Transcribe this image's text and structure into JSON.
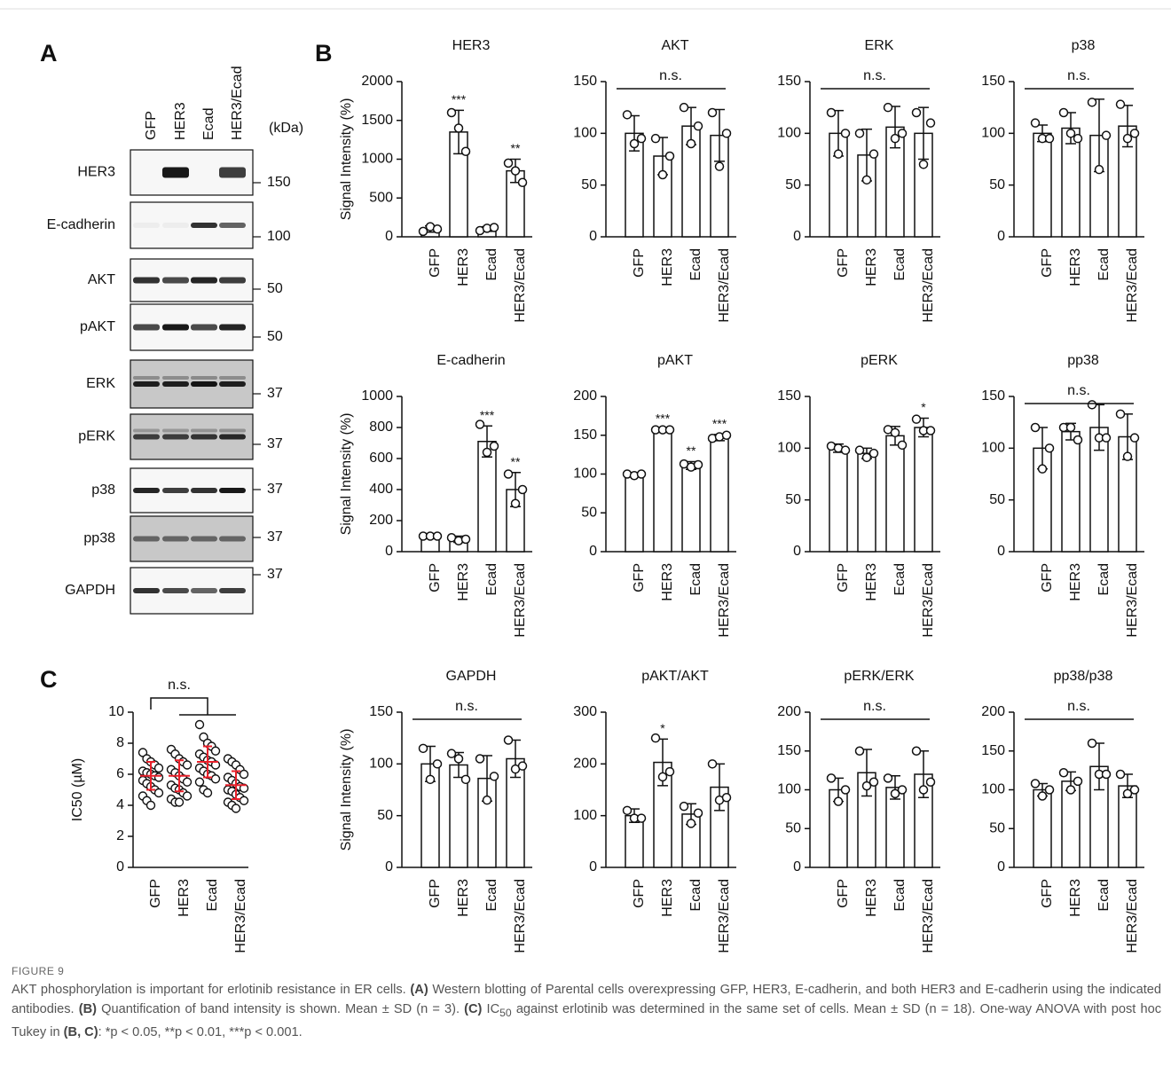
{
  "panel_labels": [
    "A",
    "B",
    "C"
  ],
  "blot": {
    "lanes": [
      "GFP",
      "HER3",
      "Ecad",
      "HER3/Ecad"
    ],
    "unit": "(kDa)",
    "rows": [
      {
        "name": "HER3",
        "marker": 150
      },
      {
        "name": "E-cadherin",
        "marker": 100
      },
      {
        "name": "AKT",
        "marker": 50
      },
      {
        "name": "pAKT",
        "marker": 50
      },
      {
        "name": "ERK",
        "marker": 37
      },
      {
        "name": "pERK",
        "marker": 37
      },
      {
        "name": "p38",
        "marker": 37
      },
      {
        "name": "pp38",
        "marker": 37
      },
      {
        "name": "GAPDH",
        "marker": 37
      }
    ]
  },
  "chart_data": [
    {
      "type": "bar",
      "title": "HER3",
      "ylabel": "Signal Intensity (%)",
      "categories": [
        "GFP",
        "HER3",
        "Ecad",
        "HER3/Ecad"
      ],
      "values": [
        100,
        1350,
        100,
        850
      ],
      "errors": [
        40,
        280,
        30,
        150
      ],
      "points": [
        [
          70,
          130,
          100
        ],
        [
          1600,
          1400,
          1100
        ],
        [
          80,
          110,
          120
        ],
        [
          950,
          850,
          700
        ]
      ],
      "annotations": [
        null,
        "***",
        null,
        "**"
      ],
      "color": "#ffffff",
      "ylim": [
        0,
        2000
      ],
      "yticks": [
        0,
        500,
        1000,
        1500,
        2000
      ]
    },
    {
      "type": "bar",
      "title": "AKT",
      "categories": [
        "GFP",
        "HER3",
        "Ecad",
        "HER3/Ecad"
      ],
      "values": [
        100,
        78,
        107,
        98
      ],
      "errors": [
        17,
        18,
        18,
        25
      ],
      "points": [
        [
          118,
          90,
          95
        ],
        [
          95,
          60,
          78
        ],
        [
          125,
          90,
          107
        ],
        [
          120,
          68,
          100
        ]
      ],
      "bracket_label": "n.s.",
      "color": "#ffffff",
      "ylim": [
        0,
        150
      ],
      "yticks": [
        0,
        50,
        100,
        150
      ]
    },
    {
      "type": "bar",
      "title": "ERK",
      "categories": [
        "GFP",
        "HER3",
        "Ecad",
        "HER3/Ecad"
      ],
      "values": [
        100,
        79,
        106,
        100
      ],
      "errors": [
        22,
        25,
        20,
        25
      ],
      "points": [
        [
          120,
          80,
          100
        ],
        [
          100,
          55,
          80
        ],
        [
          125,
          95,
          100
        ],
        [
          120,
          70,
          110
        ]
      ],
      "bracket_label": "n.s.",
      "color": "#ffffff",
      "ylim": [
        0,
        150
      ],
      "yticks": [
        0,
        50,
        100,
        150
      ]
    },
    {
      "type": "bar",
      "title": "p38",
      "categories": [
        "GFP",
        "HER3",
        "Ecad",
        "HER3/Ecad"
      ],
      "values": [
        100,
        105,
        98,
        107
      ],
      "errors": [
        8,
        15,
        35,
        20
      ],
      "points": [
        [
          110,
          95,
          95
        ],
        [
          120,
          100,
          95
        ],
        [
          130,
          65,
          98
        ],
        [
          128,
          95,
          100
        ]
      ],
      "bracket_label": "n.s.",
      "color": "#ffffff",
      "ylim": [
        0,
        150
      ],
      "yticks": [
        0,
        50,
        100,
        150
      ]
    },
    {
      "type": "bar",
      "title": "E-cadherin",
      "ylabel": "Signal Intensity (%)",
      "categories": [
        "GFP",
        "HER3",
        "Ecad",
        "HER3/Ecad"
      ],
      "values": [
        100,
        80,
        710,
        400
      ],
      "errors": [
        10,
        20,
        100,
        110
      ],
      "points": [
        [
          100,
          100,
          100
        ],
        [
          90,
          70,
          80
        ],
        [
          820,
          640,
          680
        ],
        [
          500,
          310,
          400
        ]
      ],
      "annotations": [
        null,
        null,
        "***",
        "**"
      ],
      "color": "#ffffff",
      "ylim": [
        0,
        1000
      ],
      "yticks": [
        0,
        200,
        400,
        600,
        800,
        1000
      ]
    },
    {
      "type": "bar",
      "title": "pAKT",
      "categories": [
        "GFP",
        "HER3",
        "Ecad",
        "HER3/Ecad"
      ],
      "values": [
        100,
        157,
        111,
        147
      ],
      "errors": [
        2,
        1,
        5,
        4
      ],
      "points": [
        [
          100,
          98,
          100
        ],
        [
          157,
          157,
          157
        ],
        [
          113,
          109,
          112
        ],
        [
          146,
          148,
          150
        ]
      ],
      "annotations": [
        null,
        "***",
        "**",
        "***"
      ],
      "color": "#ffffff",
      "ylim": [
        0,
        200
      ],
      "yticks": [
        0,
        50,
        100,
        150,
        200
      ]
    },
    {
      "type": "bar",
      "title": "pERK",
      "categories": [
        "GFP",
        "HER3",
        "Ecad",
        "HER3/Ecad"
      ],
      "values": [
        100,
        95,
        112,
        120
      ],
      "errors": [
        4,
        5,
        9,
        9
      ],
      "points": [
        [
          102,
          100,
          98
        ],
        [
          98,
          91,
          95
        ],
        [
          118,
          115,
          103
        ],
        [
          128,
          117,
          117
        ]
      ],
      "annotations": [
        null,
        null,
        null,
        "*"
      ],
      "color": "#ffffff",
      "ylim": [
        0,
        150
      ],
      "yticks": [
        0,
        50,
        100,
        150
      ]
    },
    {
      "type": "bar",
      "title": "pp38",
      "categories": [
        "GFP",
        "HER3",
        "Ecad",
        "HER3/Ecad"
      ],
      "values": [
        100,
        116,
        120,
        111
      ],
      "errors": [
        20,
        8,
        22,
        22
      ],
      "points": [
        [
          120,
          80,
          100
        ],
        [
          120,
          120,
          108
        ],
        [
          142,
          110,
          110
        ],
        [
          133,
          92,
          110
        ]
      ],
      "bracket_label": "n.s.",
      "color": "#ffffff",
      "ylim": [
        0,
        150
      ],
      "yticks": [
        0,
        50,
        100,
        150
      ]
    },
    {
      "type": "bar",
      "title": "GAPDH",
      "ylabel": "Signal Intensity (%)",
      "categories": [
        "GFP",
        "HER3",
        "Ecad",
        "HER3/Ecad"
      ],
      "values": [
        100,
        99,
        86,
        105
      ],
      "errors": [
        17,
        12,
        22,
        18
      ],
      "points": [
        [
          115,
          85,
          100
        ],
        [
          110,
          105,
          85
        ],
        [
          105,
          65,
          88
        ],
        [
          123,
          95,
          98
        ]
      ],
      "bracket_label": "n.s.",
      "color": "#ffffff",
      "ylim": [
        0,
        150
      ],
      "yticks": [
        0,
        50,
        100,
        150
      ]
    },
    {
      "type": "bar",
      "title": "pAKT/AKT",
      "categories": [
        "GFP",
        "HER3",
        "Ecad",
        "HER3/Ecad"
      ],
      "values": [
        100,
        203,
        103,
        155
      ],
      "errors": [
        13,
        45,
        20,
        45
      ],
      "points": [
        [
          110,
          95,
          95
        ],
        [
          250,
          175,
          185
        ],
        [
          118,
          85,
          105
        ],
        [
          200,
          130,
          135
        ]
      ],
      "annotations": [
        null,
        "*",
        null,
        null
      ],
      "color": "#ffffff",
      "ylim": [
        0,
        300
      ],
      "yticks": [
        0,
        100,
        200,
        300
      ]
    },
    {
      "type": "bar",
      "title": "pERK/ERK",
      "categories": [
        "GFP",
        "HER3",
        "Ecad",
        "HER3/Ecad"
      ],
      "values": [
        100,
        122,
        103,
        120
      ],
      "errors": [
        15,
        30,
        15,
        30
      ],
      "points": [
        [
          115,
          85,
          100
        ],
        [
          150,
          105,
          110
        ],
        [
          115,
          95,
          100
        ],
        [
          150,
          100,
          110
        ]
      ],
      "bracket_label": "n.s.",
      "color": "#ffffff",
      "ylim": [
        0,
        200
      ],
      "yticks": [
        0,
        50,
        100,
        150,
        200
      ]
    },
    {
      "type": "bar",
      "title": "pp38/p38",
      "categories": [
        "GFP",
        "HER3",
        "Ecad",
        "HER3/Ecad"
      ],
      "values": [
        100,
        111,
        130,
        105
      ],
      "errors": [
        8,
        12,
        30,
        15
      ],
      "points": [
        [
          108,
          92,
          100
        ],
        [
          122,
          100,
          111
        ],
        [
          160,
          120,
          120
        ],
        [
          120,
          95,
          100
        ]
      ],
      "bracket_label": "n.s.",
      "color": "#ffffff",
      "ylim": [
        0,
        200
      ],
      "yticks": [
        0,
        50,
        100,
        150,
        200
      ]
    },
    {
      "type": "scatter",
      "ylabel": "IC50 (µM)",
      "categories": [
        "GFP",
        "HER3",
        "Ecad",
        "HER3/Ecad"
      ],
      "points": [
        [
          7.4,
          7.0,
          6.8,
          6.6,
          6.4,
          6.2,
          6.1,
          6.0,
          5.9,
          5.8,
          5.6,
          5.4,
          5.2,
          5.0,
          4.8,
          4.6,
          4.3,
          4.0
        ],
        [
          7.6,
          7.3,
          7.0,
          6.8,
          6.6,
          6.3,
          6.1,
          5.9,
          5.7,
          5.5,
          5.3,
          5.1,
          5.0,
          4.8,
          4.6,
          4.4,
          4.2,
          4.2
        ],
        [
          9.2,
          8.4,
          8.0,
          7.8,
          7.5,
          7.3,
          7.1,
          6.9,
          6.8,
          6.6,
          6.4,
          6.2,
          6.0,
          5.9,
          5.7,
          5.5,
          5.0,
          4.8
        ],
        [
          7.0,
          6.8,
          6.6,
          6.3,
          6.0,
          5.8,
          5.6,
          5.4,
          5.2,
          5.1,
          5.0,
          4.9,
          4.7,
          4.5,
          4.3,
          4.2,
          4.0,
          3.8
        ]
      ],
      "values": [
        5.9,
        5.9,
        6.8,
        5.3
      ],
      "errors": [
        0.9,
        1.0,
        1.0,
        0.9
      ],
      "bracket_label": "n.s.",
      "color": "#ffffff",
      "mean_color": "#e8202a",
      "ylim": [
        0,
        10
      ],
      "yticks": [
        0,
        2,
        4,
        6,
        8,
        10
      ]
    }
  ],
  "caption": {
    "label": "FIGURE 9",
    "runs": [
      {
        "text": "AKT phosphorylation is important for erlotinib resistance in ER cells. "
      },
      {
        "text": "(A)",
        "style": "bold"
      },
      {
        "text": " Western blotting of Parental cells overexpressing GFP, HER3, E-cadherin, and both HER3 and E-cadherin using the indicated antibodies. "
      },
      {
        "text": "(B)",
        "style": "bold"
      },
      {
        "text": " Quantification of band intensity is shown. Mean ± SD (n = 3). "
      },
      {
        "text": "(C)",
        "style": "bold"
      },
      {
        "text": " IC"
      },
      {
        "text": "50",
        "style": "sub"
      },
      {
        "text": " against erlotinib was determined in the same set of cells. Mean ± SD (n = 18). One-way ANOVA with post hoc Tukey in "
      },
      {
        "text": "(B, C)",
        "style": "bold"
      },
      {
        "text": ": *p < 0.05, **p < 0.01, ***p < 0.001."
      }
    ]
  }
}
